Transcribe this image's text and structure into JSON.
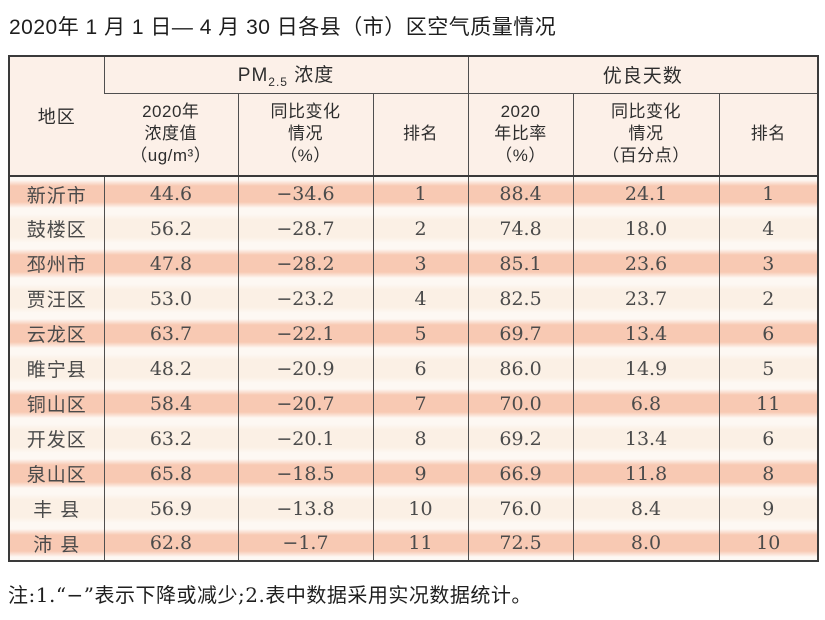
{
  "page": {
    "title": "2020年 1 月 1 日— 4 月 30 日各县（市）区空气质量情况",
    "note": "注:1.“−”表示下降或减少;2.表中数据采用实况数据统计。"
  },
  "table": {
    "corner_header": "地区",
    "group_pm25": {
      "prefix": "PM",
      "sub": "2.5",
      "suffix": " 浓度"
    },
    "group_good_days": "优良天数",
    "col_headers": [
      "2020年\n浓度值\n（ug/m³）",
      "同比变化\n情况\n（%）",
      "排名",
      "2020\n年比率\n（%）",
      "同比变化\n情况\n（百分点）",
      "排名"
    ],
    "rows": [
      {
        "region": "新沂市",
        "values": [
          "44.6",
          "−34.6",
          "1",
          "88.4",
          "24.1",
          "1"
        ]
      },
      {
        "region": "鼓楼区",
        "values": [
          "56.2",
          "−28.7",
          "2",
          "74.8",
          "18.0",
          "4"
        ]
      },
      {
        "region": "邳州市",
        "values": [
          "47.8",
          "−28.2",
          "3",
          "85.1",
          "23.6",
          "3"
        ]
      },
      {
        "region": "贾汪区",
        "values": [
          "53.0",
          "−23.2",
          "4",
          "82.5",
          "23.7",
          "2"
        ]
      },
      {
        "region": "云龙区",
        "values": [
          "63.7",
          "−22.1",
          "5",
          "69.7",
          "13.4",
          "6"
        ]
      },
      {
        "region": "睢宁县",
        "values": [
          "48.2",
          "−20.9",
          "6",
          "86.0",
          "14.9",
          "5"
        ]
      },
      {
        "region": "铜山区",
        "values": [
          "58.4",
          "−20.7",
          "7",
          "70.0",
          "6.8",
          "11"
        ]
      },
      {
        "region": "开发区",
        "values": [
          "63.2",
          "−20.1",
          "8",
          "69.2",
          "13.4",
          "6"
        ]
      },
      {
        "region": "泉山区",
        "values": [
          "65.8",
          "−18.5",
          "9",
          "66.9",
          "11.8",
          "8"
        ]
      },
      {
        "region": "丰 县",
        "values": [
          "56.9",
          "−13.8",
          "10",
          "76.0",
          "8.4",
          "9"
        ]
      },
      {
        "region": "沛 县",
        "values": [
          "62.8",
          "−1.7",
          "11",
          "72.5",
          "8.0",
          "10"
        ]
      }
    ]
  },
  "colors": {
    "row_salmon": "#f8c9b3",
    "row_cream": "#fbf0e5",
    "row_gap": "#fdf8f3",
    "header_bg": "#fcf0e8",
    "border_dark": "#3a3a3a",
    "grid_line": "#4f4f4f"
  }
}
